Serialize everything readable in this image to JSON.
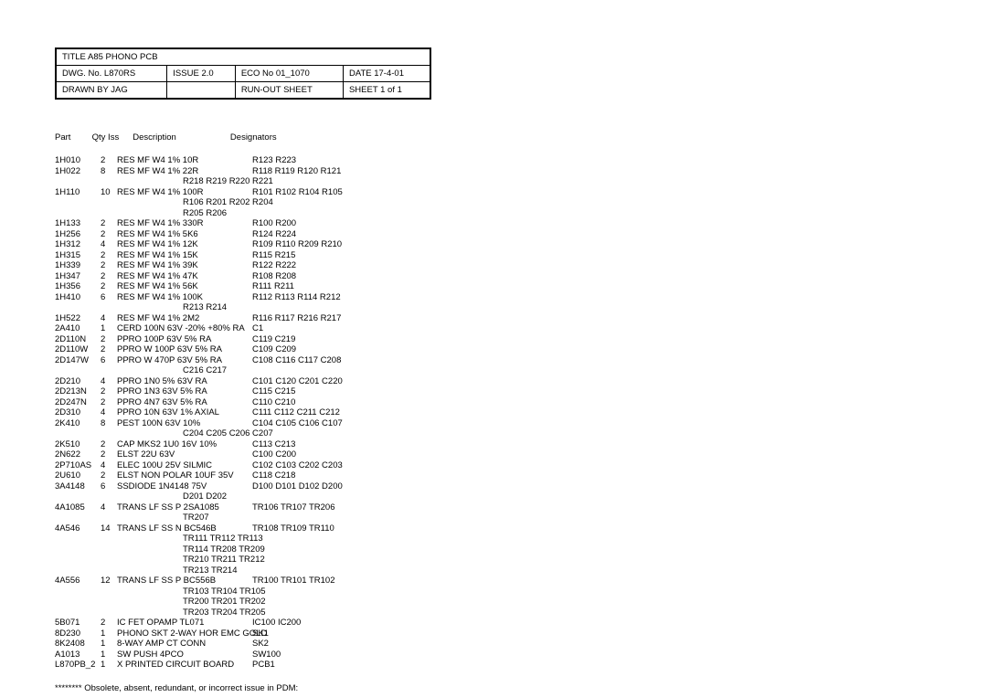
{
  "title_block": {
    "row1": {
      "title": "TITLE  A85 PHONO PCB"
    },
    "row2": {
      "dwg": "DWG. No. L870RS",
      "issue": "ISSUE 2.0",
      "eco": "ECO No 01_1070",
      "date": "DATE 17-4-01"
    },
    "row3": {
      "drawn": "DRAWN BY JAG",
      "blank": "",
      "runout": "RUN-OUT SHEET",
      "sheet": "SHEET 1 of 1"
    }
  },
  "headers": {
    "part": "Part",
    "qty": "Qty Iss",
    "desc": "Description",
    "desig": "Designators"
  },
  "parts": [
    {
      "part": "1H010",
      "qty": "2",
      "desc": "RES MF W4 1% 10R",
      "desig": "R123 R223"
    },
    {
      "part": "1H022",
      "qty": "8",
      "desc": "RES MF W4 1% 22R",
      "desig": "R118 R119 R120 R121",
      "cont": [
        "R218 R219 R220 R221"
      ]
    },
    {
      "part": "1H110",
      "qty": "10",
      "desc": "RES MF W4 1% 100R",
      "desig": "R101 R102 R104 R105",
      "cont": [
        "R106 R201 R202 R204",
        "R205 R206"
      ]
    },
    {
      "part": "1H133",
      "qty": "2",
      "desc": "RES MF W4 1% 330R",
      "desig": "R100 R200"
    },
    {
      "part": "1H256",
      "qty": "2",
      "desc": "RES MF W4 1% 5K6",
      "desig": "R124 R224"
    },
    {
      "part": "1H312",
      "qty": "4",
      "desc": "RES MF W4 1% 12K",
      "desig": "R109 R110 R209 R210"
    },
    {
      "part": "1H315",
      "qty": "2",
      "desc": "RES MF W4 1% 15K",
      "desig": "R115 R215"
    },
    {
      "part": "1H339",
      "qty": "2",
      "desc": "RES MF W4 1% 39K",
      "desig": "R122 R222"
    },
    {
      "part": "1H347",
      "qty": "2",
      "desc": "RES MF W4 1% 47K",
      "desig": "R108 R208"
    },
    {
      "part": "1H356",
      "qty": "2",
      "desc": "RES MF W4 1% 56K",
      "desig": "R111 R211"
    },
    {
      "part": "1H410",
      "qty": "6",
      "desc": "RES MF W4 1% 100K",
      "desig": "R112 R113 R114 R212",
      "cont": [
        "R213 R214"
      ]
    },
    {
      "part": "1H522",
      "qty": "4",
      "desc": "RES MF W4 1% 2M2",
      "desig": "R116 R117 R216 R217"
    },
    {
      "part": "2A410",
      "qty": "1",
      "desc": "CERD 100N 63V -20% +80% RA",
      "desig": "C1"
    },
    {
      "part": "2D110N",
      "qty": "2",
      "desc": "PPRO 100P 63V 5% RA",
      "desig": "C119 C219"
    },
    {
      "part": "2D110W",
      "qty": "2",
      "desc": "PPRO W 100P 63V 5% RA",
      "desig": "C109 C209"
    },
    {
      "part": "2D147W",
      "qty": "6",
      "desc": "PPRO W 470P 63V 5% RA",
      "desig": "C108 C116 C117 C208",
      "cont": [
        "C216 C217"
      ]
    },
    {
      "part": "2D210",
      "qty": "4",
      "desc": "PPRO 1N0 5% 63V RA",
      "desig": "C101 C120 C201 C220"
    },
    {
      "part": "2D213N",
      "qty": "2",
      "desc": "PPRO 1N3 63V 5% RA",
      "desig": "C115 C215"
    },
    {
      "part": "2D247N",
      "qty": "2",
      "desc": "PPRO 4N7 63V 5% RA",
      "desig": "C110 C210"
    },
    {
      "part": "2D310",
      "qty": "4",
      "desc": "PPRO 10N 63V 1% AXIAL",
      "desig": "C111 C112 C211 C212"
    },
    {
      "part": "2K410",
      "qty": "8",
      "desc": "PEST 100N 63V 10%",
      "desig": "C104 C105 C106 C107",
      "cont": [
        "C204 C205 C206 C207"
      ]
    },
    {
      "part": "2K510",
      "qty": "2",
      "desc": "CAP MKS2 1U0 16V 10%",
      "desig": "C113 C213"
    },
    {
      "part": "2N622",
      "qty": "2",
      "desc": "ELST 22U 63V",
      "desig": "C100 C200"
    },
    {
      "part": "2P710AS",
      "qty": "4",
      "desc": "ELEC 100U 25V SILMIC",
      "desig": "C102 C103 C202 C203"
    },
    {
      "part": "2U610",
      "qty": "2",
      "desc": "ELST NON POLAR 10UF 35V",
      "desig": "C118 C218"
    },
    {
      "part": "3A4148",
      "qty": "6",
      "desc": "SSDIODE 1N4148 75V",
      "desig": "D100 D101 D102 D200",
      "cont": [
        "D201 D202"
      ]
    },
    {
      "part": "4A1085",
      "qty": "4",
      "desc": "TRANS LF SS P 2SA1085",
      "desig": "TR106 TR107 TR206",
      "cont": [
        "TR207"
      ]
    },
    {
      "part": "4A546",
      "qty": "14",
      "desc": "TRANS LF SS N BC546B",
      "desig": "TR108 TR109 TR110",
      "cont": [
        "TR111 TR112 TR113",
        "TR114 TR208 TR209",
        "TR210 TR211 TR212",
        "TR213 TR214"
      ]
    },
    {
      "part": "4A556",
      "qty": "12",
      "desc": "TRANS LF SS P BC556B",
      "desig": "TR100 TR101 TR102",
      "cont": [
        "TR103 TR104 TR105",
        "TR200 TR201 TR202",
        "TR203 TR204 TR205"
      ]
    },
    {
      "part": "5B071",
      "qty": "2",
      "desc": "IC FET OPAMP TL071",
      "desig": "IC100 IC200"
    },
    {
      "part": "8D230",
      "qty": "1",
      "desc": "PHONO SKT 2-WAY HOR EMC GOLD",
      "desig": "SK1"
    },
    {
      "part": "8K2408",
      "qty": "1",
      "desc": "8-WAY AMP CT CONN",
      "desig": "SK2"
    },
    {
      "part": "A1013",
      "qty": "1",
      "desc": "SW PUSH 4PCO",
      "desig": "SW100"
    },
    {
      "part": "L870PB_2",
      "qty": "1",
      "desc": "X PRINTED CIRCUIT BOARD",
      "desig": "PCB1"
    }
  ],
  "footnote": "******** Obsolete, absent, redundant, or incorrect issue in PDM:"
}
